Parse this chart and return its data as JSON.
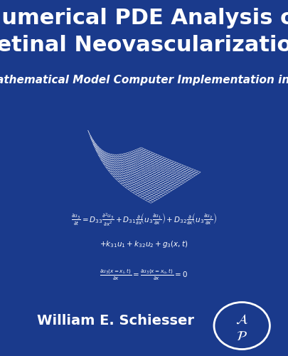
{
  "bg_color": "#1a3a8c",
  "title_line1": "Numerical PDE Analysis of",
  "title_line2": "Retinal Neovascularization",
  "subtitle": "Mathematical Model Computer Implementation in R",
  "author": "William E. Schiesser",
  "title_fontsize": 22,
  "subtitle_fontsize": 11,
  "author_fontsize": 14,
  "surface_color": "#aabbdd",
  "wire_color": "#ffffff",
  "wire_linewidth": 0.4,
  "wire_alpha": 0.8,
  "eq_fontsize": 7.5,
  "elev": 28,
  "azim": -50
}
